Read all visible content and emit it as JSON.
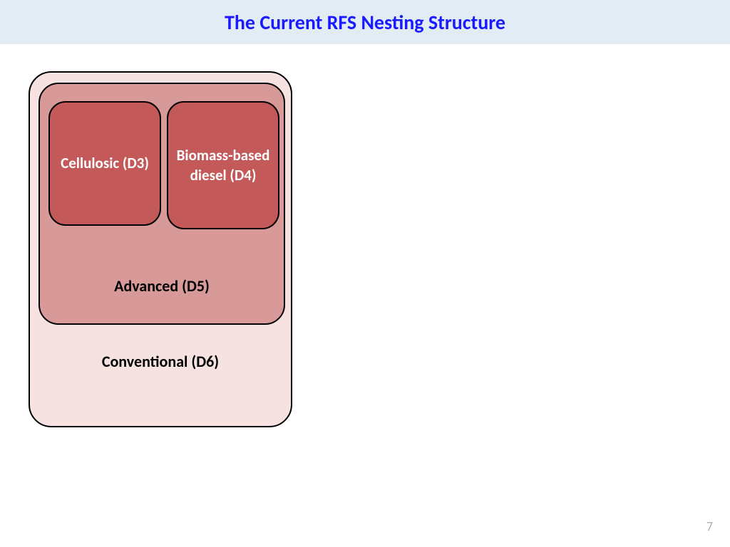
{
  "title": "The Current RFS Nesting Structure",
  "page_number": "7",
  "diagram": {
    "type": "nested-boxes",
    "background_color": "#ffffff",
    "title_bar_color": "#e1ecf4",
    "title_text_color": "#1a1aff",
    "title_fontsize": 28,
    "levels": {
      "d6": {
        "label": "Conventional (D6)",
        "fill": "#f7e2e2",
        "border": "#000000",
        "border_width": 2,
        "border_radius": 32,
        "label_color": "#000000",
        "label_fontsize": 22,
        "label_weight": "bold"
      },
      "d5": {
        "label": "Advanced (D5)",
        "fill": "#d89999",
        "border": "#000000",
        "border_width": 2,
        "border_radius": 28,
        "label_color": "#000000",
        "label_fontsize": 22,
        "label_weight": "bold"
      },
      "d3": {
        "label": "Cellulosic (D3)",
        "fill": "#c45959",
        "border": "#000000",
        "border_width": 2,
        "border_radius": 24,
        "label_color": "#ffffff",
        "label_fontsize": 21,
        "label_weight": "bold"
      },
      "d4": {
        "label": "Biomass-based diesel (D4)",
        "fill": "#c45959",
        "border": "#000000",
        "border_width": 2,
        "border_radius": 24,
        "label_color": "#ffffff",
        "label_fontsize": 21,
        "label_weight": "bold"
      }
    },
    "page_number_color": "#b0b0b0",
    "page_number_fontsize": 18
  }
}
